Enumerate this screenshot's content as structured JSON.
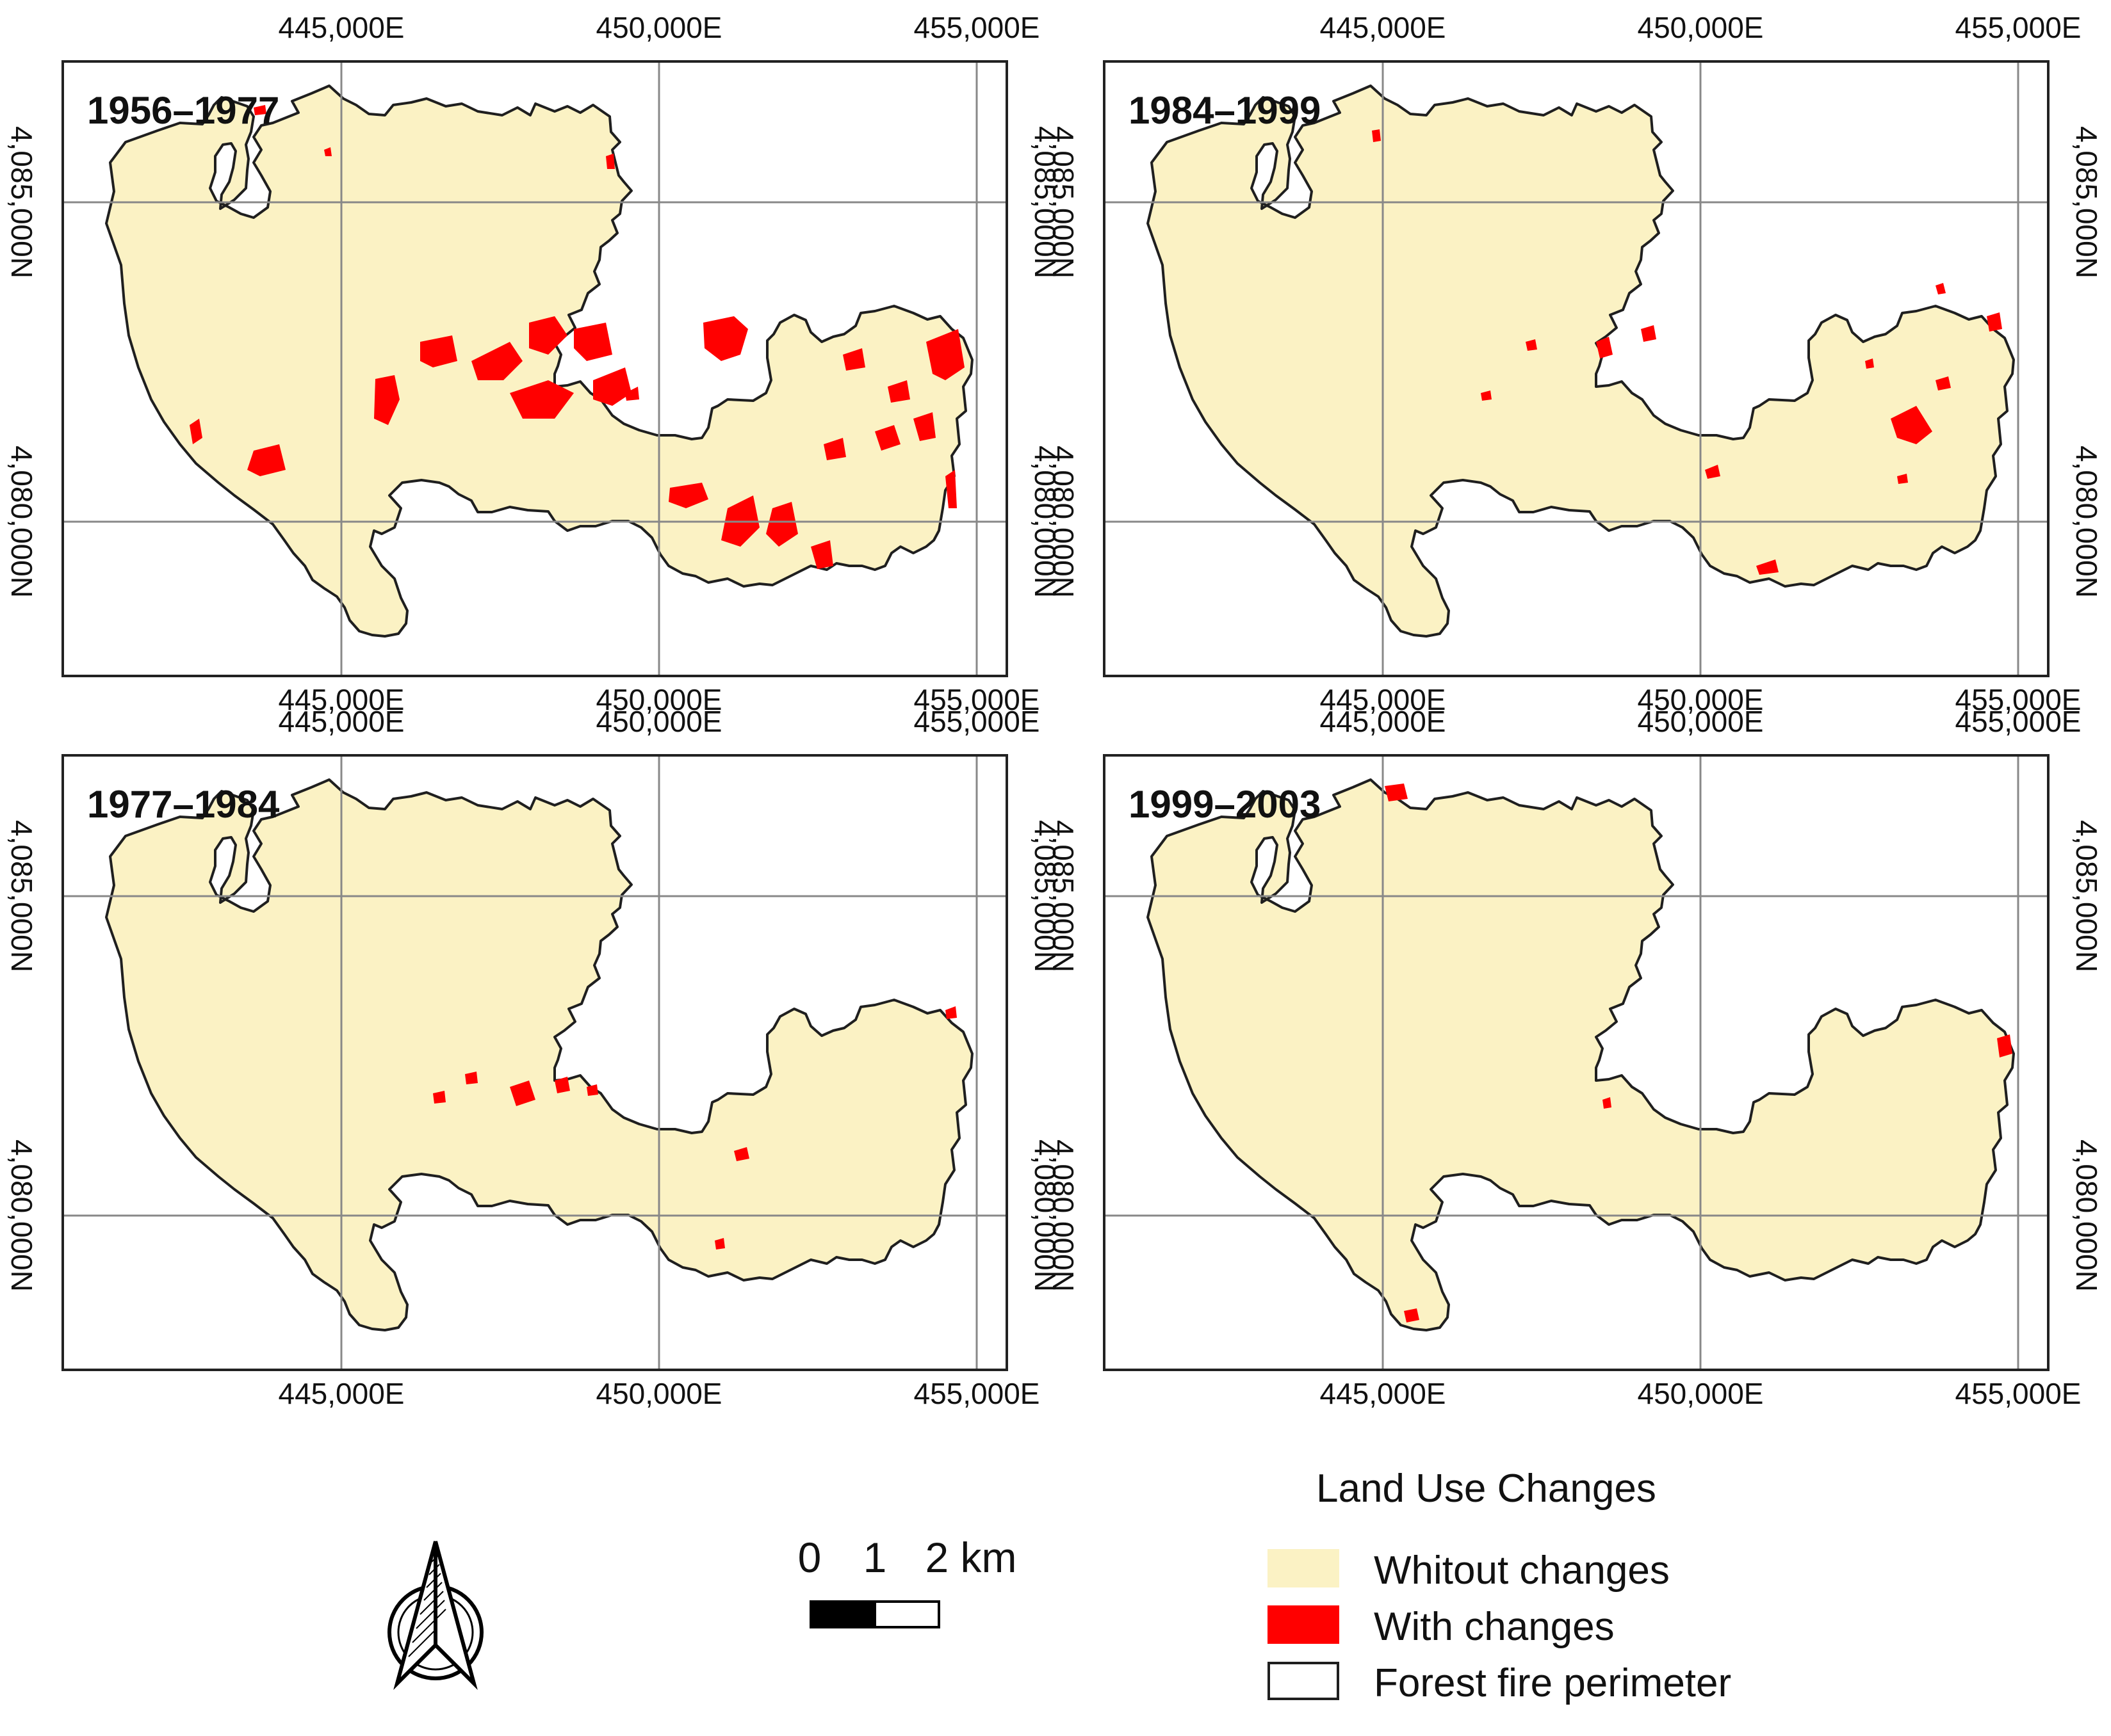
{
  "colors": {
    "unchanged": "#fbf2c4",
    "changed": "#ff0000",
    "perimeter": "#1f1f1f",
    "grid": "#888888"
  },
  "axes": {
    "x_labels": [
      "445,000E",
      "450,000E",
      "455,000E"
    ],
    "y_labels": [
      "4,085,000N",
      "4,080,000N"
    ]
  },
  "panels": [
    {
      "title": "1956–1977",
      "changes": "high"
    },
    {
      "title": "1984–1999",
      "changes": "medium"
    },
    {
      "title": "1977–1984",
      "changes": "low"
    },
    {
      "title": "1999–2003",
      "changes": "very-low"
    }
  ],
  "scale": {
    "tick0": "0",
    "tick1": "1",
    "tick2": "2 km"
  },
  "legend": {
    "title": "Land Use Changes",
    "items": [
      {
        "label": "Whitout changes",
        "swatch": "unchanged"
      },
      {
        "label": "With changes",
        "swatch": "changed"
      },
      {
        "label": "Forest fire perimeter",
        "swatch": "perimeter"
      }
    ]
  }
}
